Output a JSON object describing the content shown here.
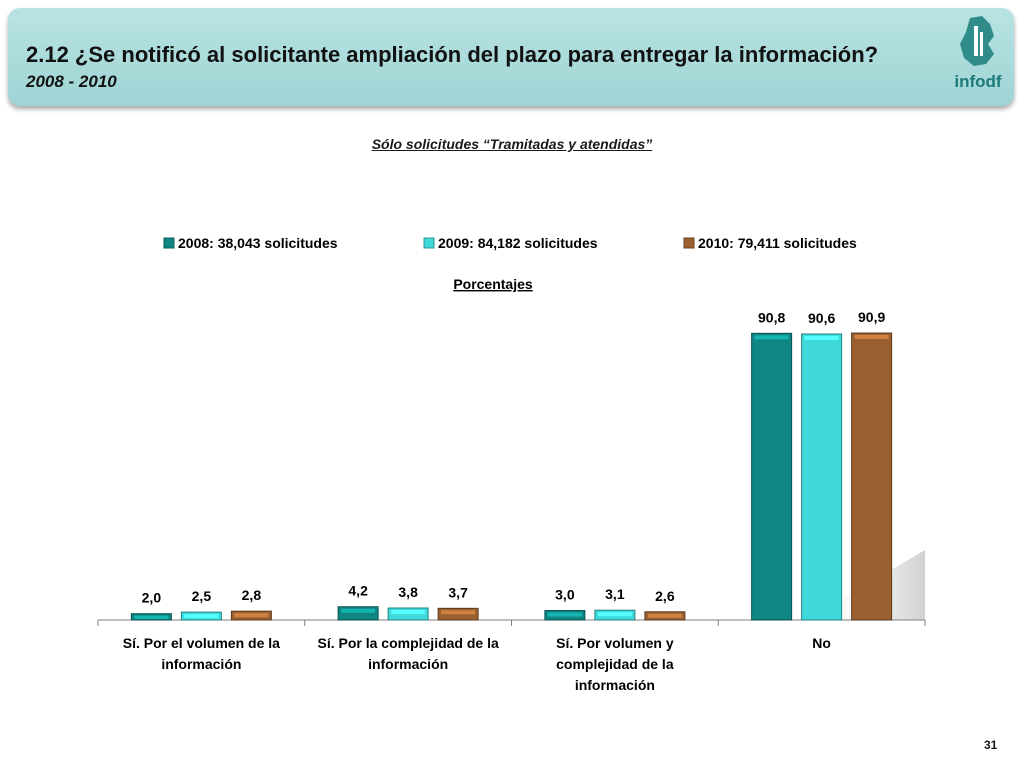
{
  "header": {
    "title": "2.12 ¿Se notificó al solicitante ampliación del plazo para entregar la información?",
    "subtitle": "2008 - 2010",
    "logo_text": "infodf",
    "accent_color": "#a6d8d8"
  },
  "chart_subtitle": "Sólo solicitudes “Tramitadas y atendidas”",
  "page_number": "31",
  "chart_data": {
    "type": "bar",
    "ylabel": "Porcentajes",
    "ylim": [
      0,
      100
    ],
    "grid": false,
    "legend_position": "top",
    "categories": [
      [
        "Sí. Por el volumen de la",
        "información"
      ],
      [
        "Sí. Por la complejidad de la",
        "información"
      ],
      [
        "Sí. Por volumen y",
        "complejidad de la",
        "información"
      ],
      [
        "No"
      ]
    ],
    "series": [
      {
        "name": "2008: 38,043 solicitudes",
        "color": "#0f8683",
        "values": [
          2.0,
          4.2,
          3.0,
          90.8
        ],
        "labels": [
          "2,0",
          "4,2",
          "3,0",
          "90,8"
        ]
      },
      {
        "name": "2009: 84,182 solicitudes",
        "color": "#3fd9d9",
        "values": [
          2.5,
          3.8,
          3.1,
          90.6
        ],
        "labels": [
          "2,5",
          "3,8",
          "3,1",
          "90,6"
        ]
      },
      {
        "name": "2010: 79,411 solicitudes",
        "color": "#9a6030",
        "values": [
          2.8,
          3.7,
          2.6,
          90.9
        ],
        "labels": [
          "2,8",
          "3,7",
          "2,6",
          "90,9"
        ]
      }
    ]
  }
}
